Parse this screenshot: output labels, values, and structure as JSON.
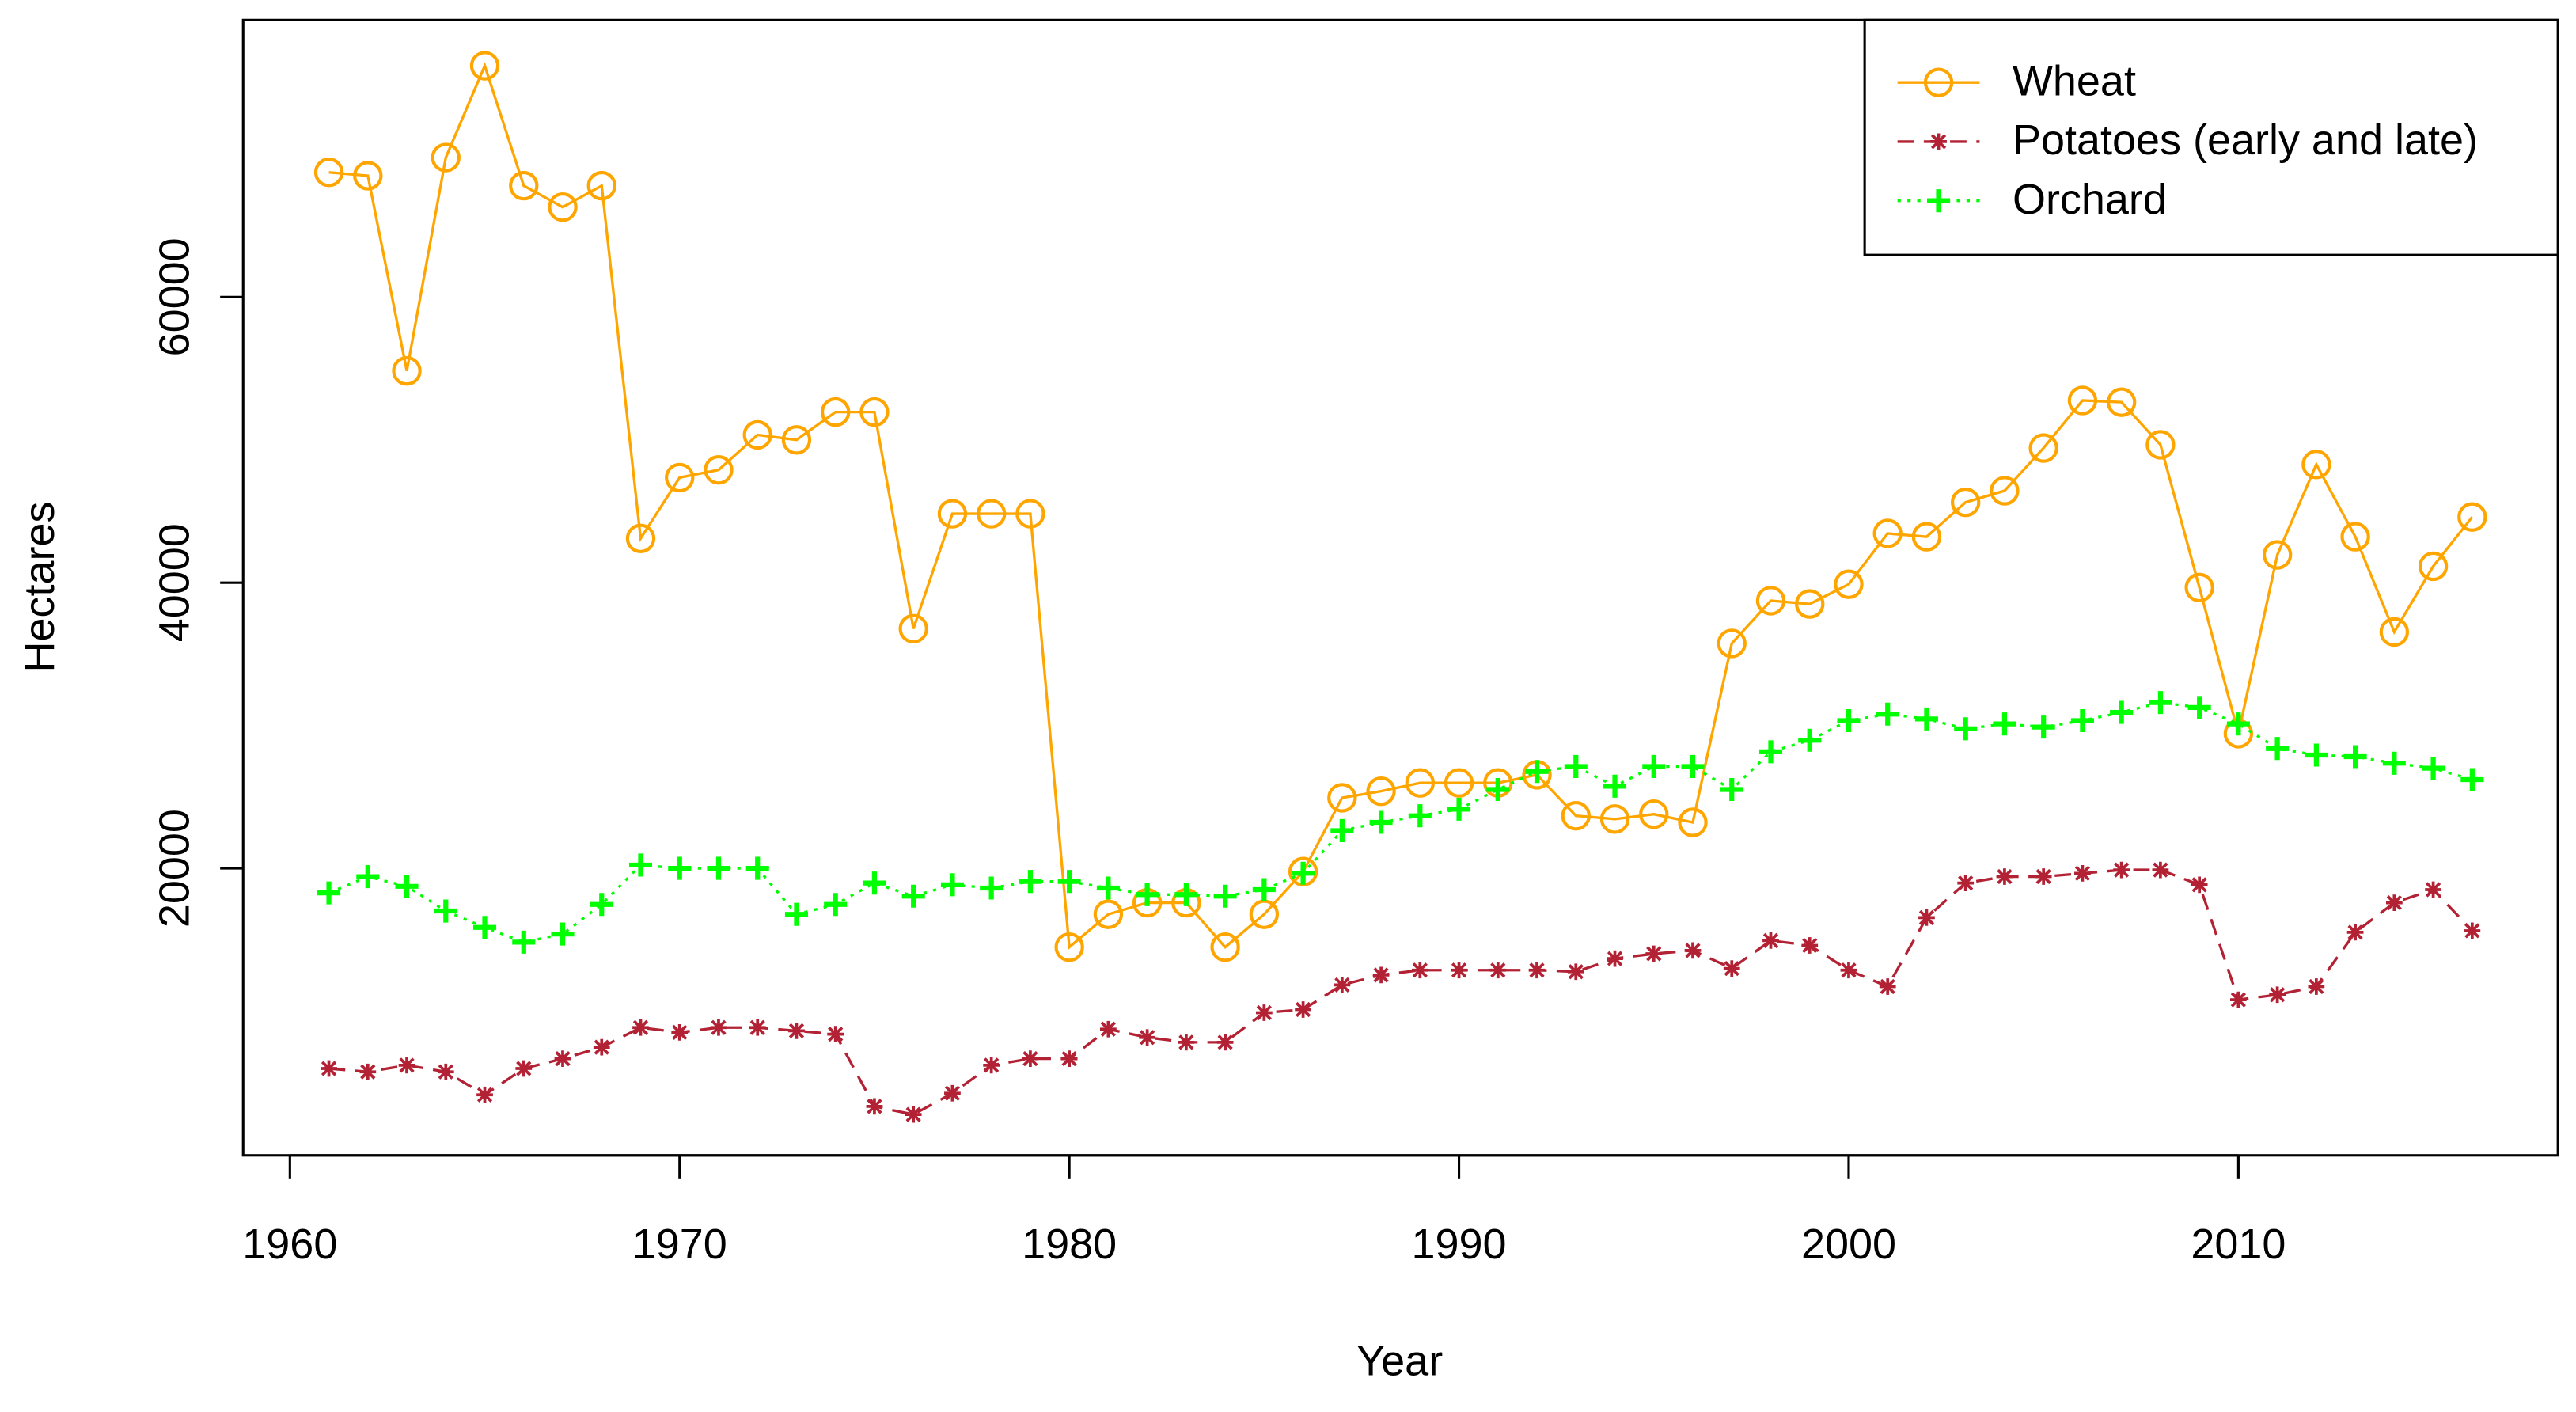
{
  "chart_data": {
    "type": "line",
    "x_label": "Year",
    "y_label": "Hectares",
    "x": [
      1961,
      1962,
      1963,
      1964,
      1965,
      1966,
      1967,
      1968,
      1969,
      1970,
      1971,
      1972,
      1973,
      1974,
      1975,
      1976,
      1977,
      1978,
      1979,
      1980,
      1981,
      1982,
      1983,
      1984,
      1985,
      1986,
      1987,
      1988,
      1989,
      1990,
      1991,
      1992,
      1993,
      1994,
      1995,
      1996,
      1997,
      1998,
      1999,
      2000,
      2001,
      2002,
      2003,
      2004,
      2005,
      2006,
      2007,
      2008,
      2009,
      2010,
      2011,
      2012,
      2013,
      2014,
      2015,
      2016
    ],
    "series": [
      {
        "name": "Wheat",
        "color": "#FFA500",
        "line": "solid",
        "marker": "circle",
        "values": [
          68736,
          68500,
          54830,
          69770,
          76200,
          67800,
          66300,
          67800,
          43100,
          47360,
          47900,
          50350,
          50000,
          51950,
          51950,
          36780,
          44830,
          44830,
          44830,
          14480,
          16780,
          17590,
          17590,
          14480,
          16780,
          19770,
          24940,
          25400,
          25980,
          25980,
          25980,
          26550,
          23680,
          23450,
          23790,
          23220,
          35750,
          38740,
          38510,
          39890,
          43450,
          43220,
          45630,
          46440,
          49430,
          52760,
          52640,
          49660,
          39660,
          29430,
          41950,
          48280,
          43220,
          36550,
          41150,
          44600
        ]
      },
      {
        "name": "Potatoes (early and late)",
        "color": "#B22234",
        "line": "dashed",
        "marker": "star",
        "values": [
          5980,
          5750,
          6210,
          5750,
          4140,
          5980,
          6670,
          7470,
          8850,
          8510,
          8850,
          8850,
          8620,
          8390,
          3330,
          2760,
          4250,
          6210,
          6670,
          6670,
          8740,
          8160,
          7820,
          7820,
          9890,
          10110,
          11840,
          12530,
          12870,
          12870,
          12870,
          12870,
          12760,
          13680,
          14020,
          14250,
          12990,
          14940,
          14600,
          12870,
          11720,
          16550,
          18970,
          19420,
          19420,
          19650,
          19890,
          19890,
          18850,
          10800,
          11150,
          11720,
          15520,
          17590,
          18510,
          15630
        ]
      },
      {
        "name": "Orchard",
        "color": "#00FF00",
        "line": "dotted",
        "marker": "plus",
        "values": [
          18280,
          19420,
          18740,
          17010,
          15860,
          14830,
          15400,
          17470,
          20230,
          20000,
          20000,
          20000,
          16780,
          17470,
          18970,
          18050,
          18850,
          18620,
          19080,
          19080,
          18620,
          18160,
          18160,
          18050,
          18510,
          19660,
          22640,
          23220,
          23680,
          24140,
          25520,
          26780,
          27130,
          25750,
          27130,
          27130,
          25520,
          28160,
          28970,
          30340,
          30800,
          30460,
          29770,
          30110,
          29890,
          30340,
          30920,
          31610,
          31260,
          30110,
          28390,
          27930,
          27820,
          27360,
          27010,
          26210
        ]
      }
    ],
    "xlim": [
      1958.8,
      2018.2
    ],
    "ylim": [
      -100,
      79400
    ],
    "xticks": [
      1960,
      1970,
      1980,
      1990,
      2000,
      2010
    ],
    "yticks": [
      20000,
      40000,
      60000
    ],
    "legend": "top-right"
  }
}
